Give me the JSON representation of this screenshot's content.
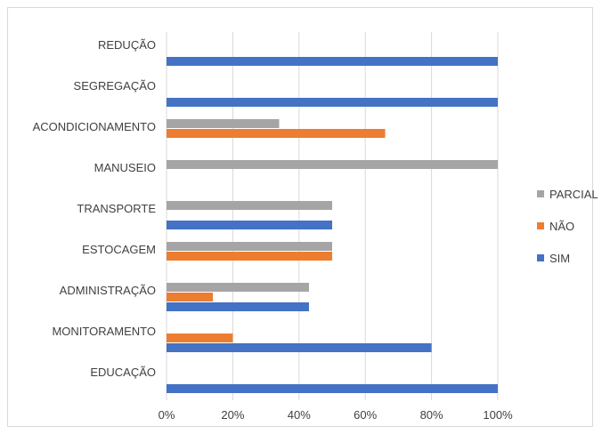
{
  "chart_data": {
    "type": "bar",
    "orientation": "horizontal",
    "categories": [
      "REDUÇÃO",
      "SEGREGAÇÃO",
      "ACONDICIONAMENTO",
      "MANUSEIO",
      "TRANSPORTE",
      "ESTOCAGEM",
      "ADMINISTRAÇÃO",
      "MONITORAMENTO",
      "EDUCAÇÃO"
    ],
    "series": [
      {
        "name": "PARCIAL",
        "color": "#a5a5a5",
        "values": [
          0,
          0,
          34,
          100,
          50,
          50,
          43,
          0,
          0
        ]
      },
      {
        "name": "NÃO",
        "color": "#ed7d31",
        "values": [
          0,
          0,
          66,
          0,
          0,
          50,
          14,
          20,
          0
        ]
      },
      {
        "name": "SIM",
        "color": "#4472c4",
        "values": [
          100,
          100,
          0,
          0,
          50,
          0,
          43,
          80,
          100
        ]
      }
    ],
    "xlim": [
      0,
      100
    ],
    "ticks": [
      "0%",
      "20%",
      "40%",
      "60%",
      "80%",
      "100%"
    ],
    "grid": true,
    "legend_position": "right",
    "title": "",
    "xlabel": "",
    "ylabel": ""
  }
}
